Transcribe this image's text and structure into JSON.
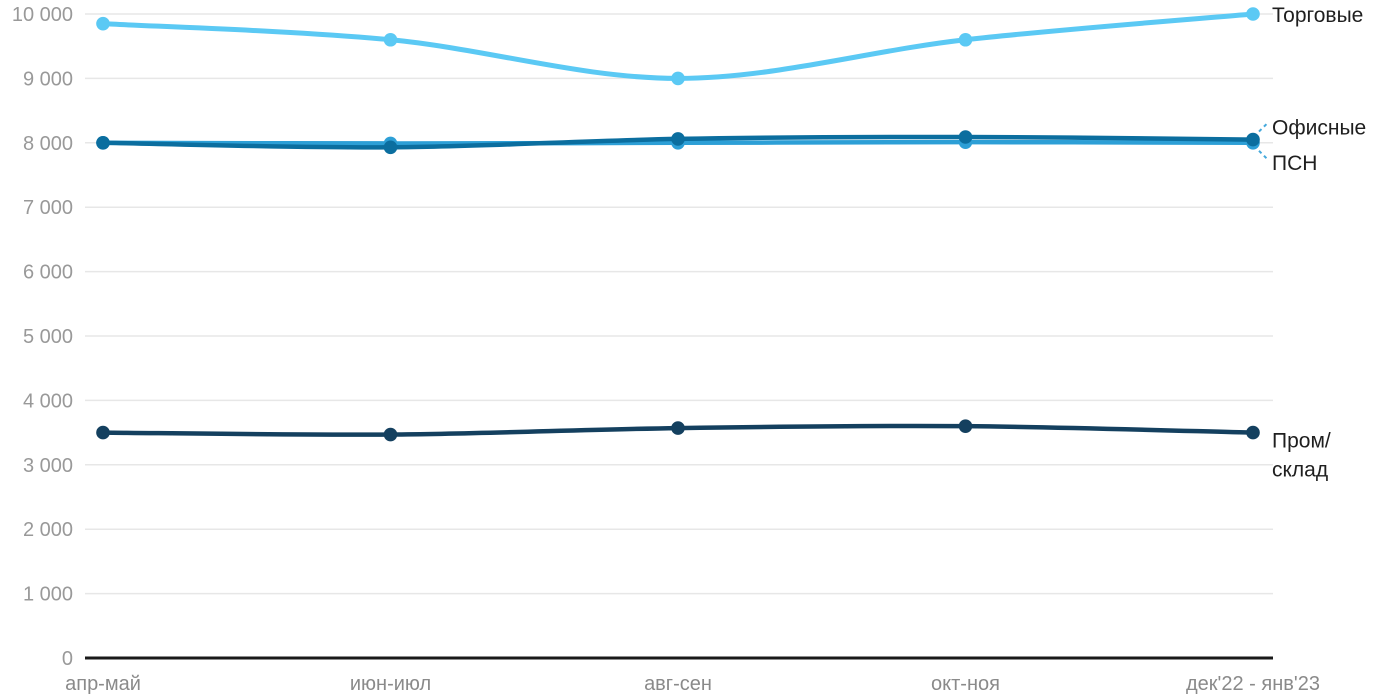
{
  "chart_data": {
    "type": "line",
    "title": "",
    "x_categories": [
      "апр-май",
      "июн-июл",
      "авг-сен",
      "окт-ноя",
      "дек'22 - янв'23"
    ],
    "series": [
      {
        "name": "Торговые",
        "color": "#5bc9f4",
        "values": [
          9850,
          9600,
          9000,
          9600,
          10000
        ],
        "label_lines": [
          "Торговые"
        ],
        "label_placement": "right",
        "connector": false,
        "line_width": 5,
        "z": 2
      },
      {
        "name": "Офисные",
        "color": "#0b6e9f",
        "values": [
          8000,
          7930,
          8060,
          8090,
          8050
        ],
        "label_lines": [
          "Офисные"
        ],
        "label_placement": "above",
        "connector": true,
        "line_width": 4.5,
        "z": 3
      },
      {
        "name": "ПСН",
        "color": "#2d9fd6",
        "values": [
          8000,
          7990,
          8000,
          8010,
          8000
        ],
        "label_lines": [
          "ПСН"
        ],
        "label_placement": "below",
        "connector": true,
        "line_width": 4.5,
        "z": 1
      },
      {
        "name": "Пром/склад",
        "color": "#14405f",
        "values": [
          3500,
          3470,
          3570,
          3600,
          3500
        ],
        "label_lines": [
          "Пром/",
          "склад"
        ],
        "label_placement": "right-wrap",
        "connector": false,
        "line_width": 4.5,
        "z": 1
      }
    ],
    "ylim": [
      0,
      10000
    ],
    "ytick_step": 1000,
    "ytick_labels": [
      "0",
      "1 000",
      "2 000",
      "3 000",
      "4 000",
      "5 000",
      "6 000",
      "7 000",
      "8 000",
      "9 000",
      "10 000"
    ],
    "grid": true,
    "legend_position": "at-line-end-right"
  },
  "styles": {
    "background": "#ffffff",
    "grid_color": "#e7e7e7",
    "axis_color": "#1a1a1a",
    "ytick_color": "#999999",
    "xtick_color": "#8a8a8a",
    "series_label_color": "#1f1f1f",
    "connector_color": "#46a9dc"
  }
}
